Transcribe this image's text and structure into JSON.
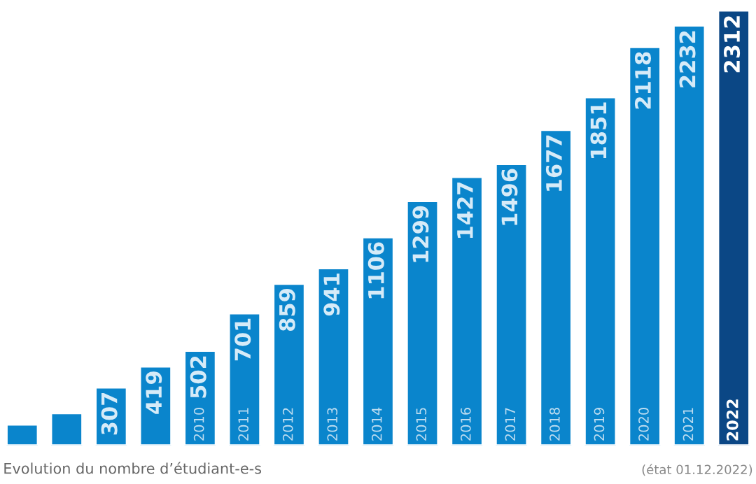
{
  "chart_data": {
    "type": "bar",
    "title": "Evolution du nombre d’étudiant-e-s",
    "annotations": [
      "(état 01.12.2022)"
    ],
    "categories": [
      null,
      null,
      null,
      null,
      "2010",
      "2011",
      "2012",
      "2013",
      "2014",
      "2015",
      "2016",
      "2017",
      "2018",
      "2019",
      "2020",
      "2021",
      "2022"
    ],
    "values": [
      110,
      170,
      307,
      419,
      502,
      701,
      859,
      941,
      1106,
      1299,
      1427,
      1496,
      1677,
      1851,
      2118,
      2232,
      2312
    ],
    "value_labels": [
      null,
      null,
      "307",
      "419",
      "502",
      "701",
      "859",
      "941",
      "1106",
      "1299",
      "1427",
      "1496",
      "1677",
      "1851",
      "2118",
      "2232",
      "2312"
    ],
    "colors": [
      "#0a85cc",
      "#0a85cc",
      "#0a85cc",
      "#0a85cc",
      "#0a85cc",
      "#0a85cc",
      "#0a85cc",
      "#0a85cc",
      "#0a85cc",
      "#0a85cc",
      "#0a85cc",
      "#0a85cc",
      "#0a85cc",
      "#0a85cc",
      "#0a85cc",
      "#0a85cc",
      "#0b4785"
    ],
    "ylim": [
      0,
      2330
    ]
  }
}
